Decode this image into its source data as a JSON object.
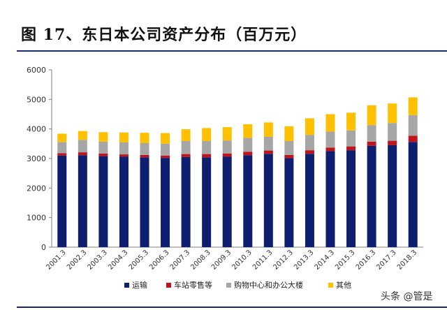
{
  "header": {
    "title": "图 17、东日本公司资产分布（百万元）"
  },
  "watermark": "头条 @管是",
  "chart_data": {
    "type": "bar",
    "stacked": true,
    "categories": [
      "2001.3",
      "2002.3",
      "2003.3",
      "2004.3",
      "2005.3",
      "2006.3",
      "2007.3",
      "2008.3",
      "2009.3",
      "2010.3",
      "2011.3",
      "2012.3",
      "2013.3",
      "2014.3",
      "2015.3",
      "2016.3",
      "2017.3",
      "2018.3"
    ],
    "series": [
      {
        "name": "运输",
        "color": "#0d1f6e",
        "values": [
          3100,
          3110,
          3080,
          3060,
          3040,
          3020,
          3050,
          3040,
          3060,
          3110,
          3160,
          3010,
          3160,
          3250,
          3280,
          3430,
          3450,
          3560
        ]
      },
      {
        "name": "车站零售等",
        "color": "#c0141c",
        "values": [
          80,
          100,
          90,
          80,
          80,
          80,
          100,
          110,
          110,
          120,
          110,
          110,
          120,
          120,
          130,
          140,
          150,
          210
        ]
      },
      {
        "name": "购物中心和办公大楼",
        "color": "#a6a6a6",
        "values": [
          380,
          420,
          400,
          410,
          400,
          400,
          440,
          440,
          440,
          470,
          470,
          470,
          520,
          540,
          540,
          560,
          600,
          700
        ]
      },
      {
        "name": "其他",
        "color": "#ffc000",
        "values": [
          280,
          300,
          320,
          330,
          350,
          360,
          400,
          440,
          450,
          460,
          480,
          500,
          560,
          590,
          600,
          670,
          660,
          600
        ]
      }
    ],
    "ylim": [
      0,
      6000
    ],
    "yticks": [
      0,
      1000,
      2000,
      3000,
      4000,
      5000,
      6000
    ],
    "legend_position": "bottom",
    "grid": false
  }
}
